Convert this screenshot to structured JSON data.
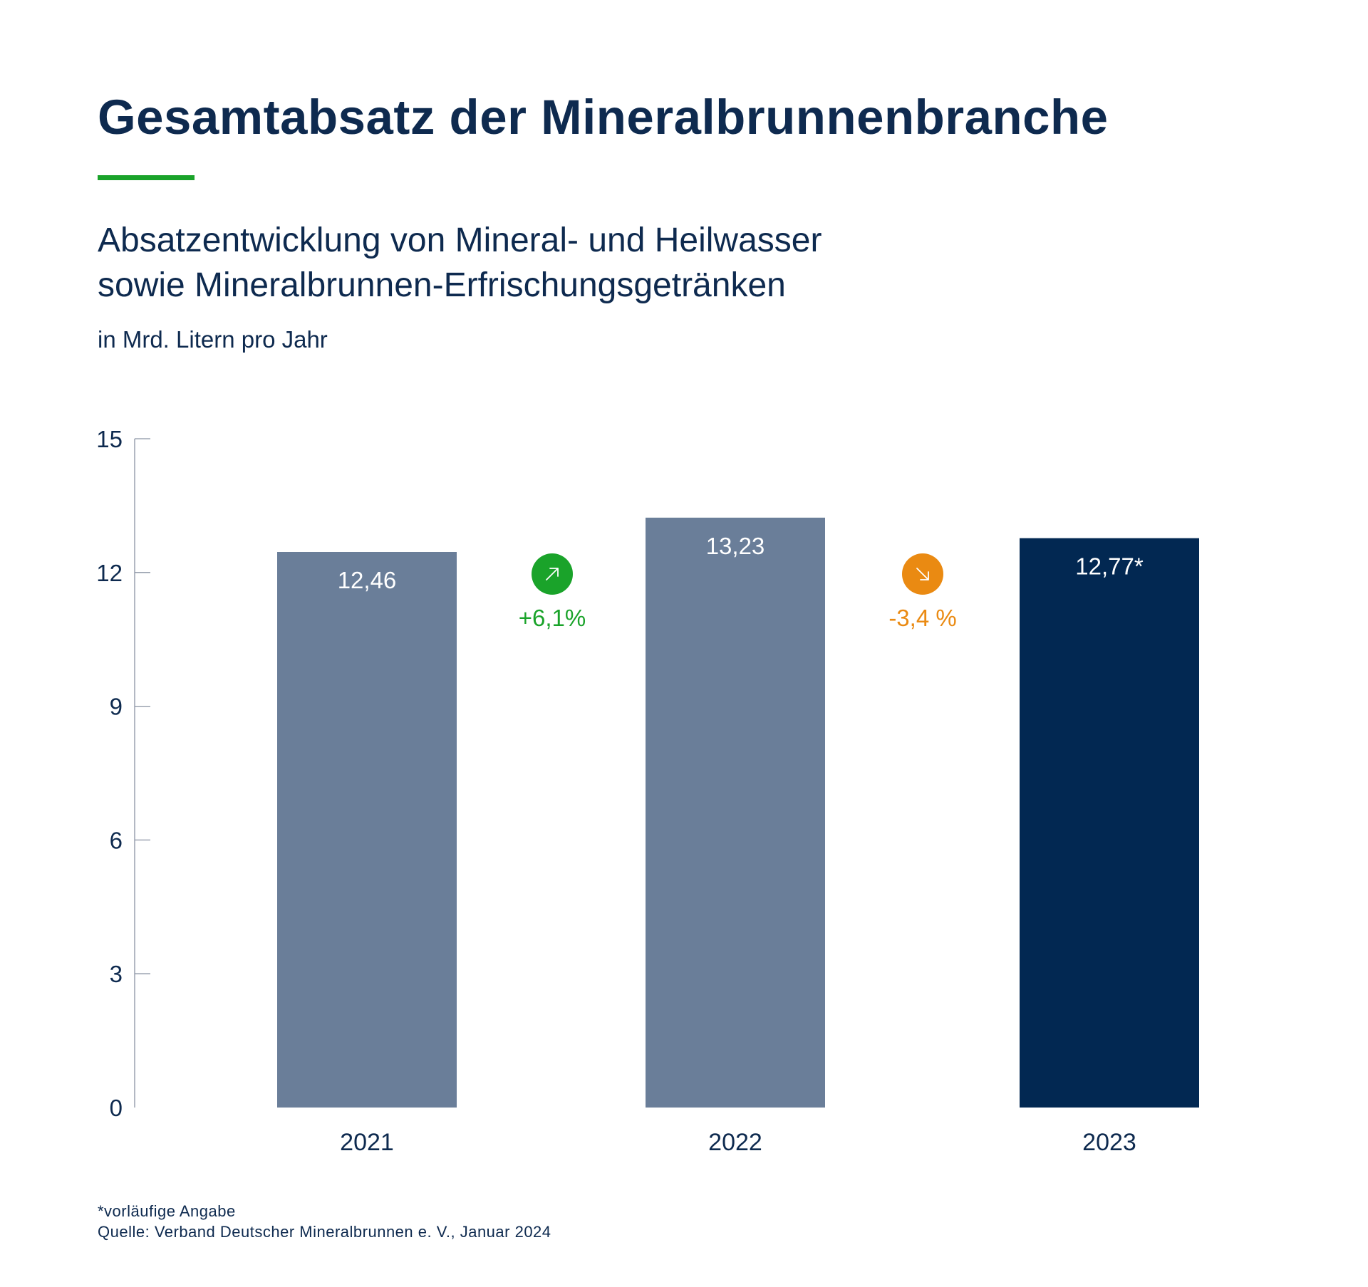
{
  "header": {
    "title": "Gesamtabsatz der Mineralbrunnenbranche",
    "subtitle_line1": "Absatzentwicklung von Mineral- und Heilwasser",
    "subtitle_line2": "sowie Mineralbrunnen-Erfrischungsgetränken",
    "unit": "in Mrd. Litern pro Jahr"
  },
  "footer": {
    "note": "*vorläufige Angabe",
    "source": "Quelle: Verband Deutscher Mineralbrunnen e. V., Januar 2024"
  },
  "colors": {
    "title": "#0e2a4f",
    "accent_line": "#1aa32a",
    "bar_previous_years": "#6a7e99",
    "bar_current_year": "#022852",
    "increase": "#1aa32a",
    "decrease": "#ea8a12",
    "value_label": "#ffffff"
  },
  "chart_data": {
    "type": "bar",
    "title": "Gesamtabsatz der Mineralbrunnenbranche",
    "subtitle": "Absatzentwicklung von Mineral- und Heilwasser sowie Mineralbrunnen-Erfrischungsgetränken",
    "ylabel": "in Mrd. Litern pro Jahr",
    "xlabel": "",
    "categories": [
      "2021",
      "2022",
      "2023"
    ],
    "values": [
      12.46,
      13.23,
      12.77
    ],
    "value_labels": [
      "12,46",
      "13,23",
      "12,77*"
    ],
    "ylim": [
      0,
      15
    ],
    "yticks": [
      0,
      3,
      6,
      9,
      12,
      15
    ],
    "ytick_labels": [
      "0",
      "3",
      "6",
      "9",
      "12",
      "15"
    ],
    "grid": false,
    "legend": "none",
    "changes": [
      {
        "from": "2021",
        "to": "2022",
        "label": "+6,1%",
        "direction": "up",
        "icon": "arrow-up-right-icon"
      },
      {
        "from": "2022",
        "to": "2023",
        "label": "-3,4 %",
        "direction": "down",
        "icon": "arrow-down-right-icon"
      }
    ]
  }
}
